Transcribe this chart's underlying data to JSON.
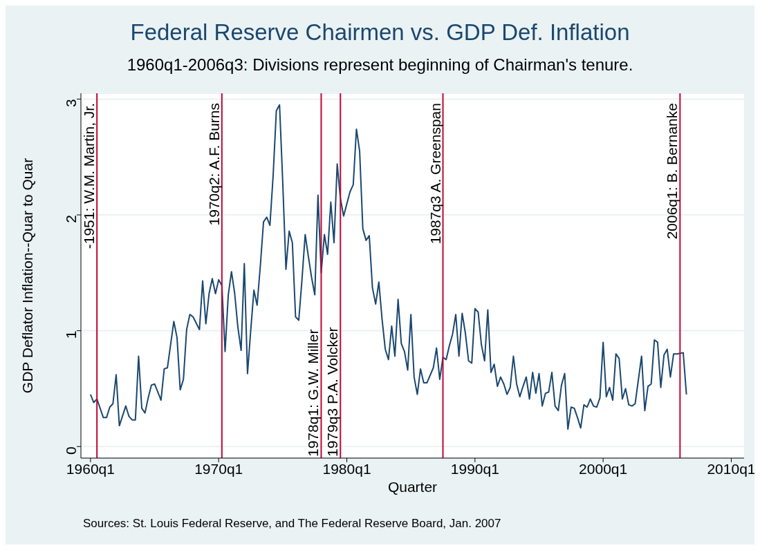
{
  "chart_data": {
    "type": "line",
    "title": "Federal Reserve Chairmen vs. GDP Def. Inflation",
    "subtitle": "1960q1-2006q3: Divisions represent beginning of Chairman's tenure.",
    "xlabel": "Quarter",
    "ylabel": "GDP Deflator Inflation--Quar to Quar",
    "annotations": [
      "Sources: St. Louis Federal Reserve, and The Federal Reserve Board, Jan. 2007"
    ],
    "x": [
      "1960-01",
      "1960-04",
      "1960-07",
      "1961-01",
      "1961-04",
      "1961-07",
      "1961-10",
      "1962-01",
      "1962-04",
      "1962-10",
      "1963-01",
      "1963-04",
      "1963-07",
      "1963-10",
      "1964-01",
      "1964-04",
      "1964-07",
      "1964-10",
      "1965-01",
      "1965-07",
      "1965-10",
      "1966-01",
      "1966-07",
      "1966-10",
      "1967-01",
      "1967-04",
      "1967-07",
      "1967-10",
      "1968-01",
      "1968-07",
      "1968-10",
      "1969-01",
      "1969-04",
      "1969-07",
      "1969-10",
      "1970-01",
      "1970-04",
      "1970-07",
      "1970-10",
      "1971-01",
      "1971-04",
      "1971-07",
      "1971-10",
      "1972-01",
      "1972-04",
      "1972-07",
      "1972-10",
      "1973-01",
      "1973-04",
      "1973-07",
      "1973-10",
      "1974-01",
      "1974-04",
      "1974-07",
      "1974-10",
      "1975-01",
      "1975-04",
      "1975-07",
      "1975-10",
      "1976-01",
      "1976-04",
      "1976-07",
      "1976-10",
      "1977-01",
      "1977-04",
      "1977-07",
      "1977-10",
      "1978-01",
      "1978-04",
      "1978-07",
      "1978-10",
      "1979-01",
      "1979-04",
      "1979-07",
      "1979-10",
      "1980-04",
      "1980-07",
      "1980-10",
      "1981-01",
      "1981-04",
      "1981-07",
      "1981-10",
      "1982-01",
      "1982-04",
      "1982-07",
      "1982-10",
      "1983-01",
      "1983-04",
      "1983-07",
      "1983-10",
      "1984-01",
      "1984-04",
      "1984-07",
      "1984-10",
      "1985-01",
      "1985-04",
      "1985-07",
      "1985-10",
      "1986-01",
      "1986-04",
      "1986-10",
      "1987-01",
      "1987-04",
      "1987-07",
      "1987-10",
      "1988-01",
      "1988-04",
      "1988-07",
      "1988-10",
      "1989-01",
      "1989-04",
      "1989-07",
      "1989-10",
      "1990-01",
      "1990-04",
      "1990-07",
      "1990-10",
      "1991-01",
      "1991-04",
      "1991-07",
      "1991-10",
      "1992-01",
      "1992-04",
      "1992-07",
      "1992-10",
      "1993-01",
      "1993-04",
      "1993-07",
      "1993-10",
      "1994-01",
      "1994-04",
      "1994-07",
      "1994-10",
      "1995-01",
      "1995-04",
      "1995-07",
      "1995-10",
      "1996-01",
      "1996-04",
      "1996-07",
      "1996-10",
      "1997-01",
      "1997-04",
      "1997-07",
      "1997-10",
      "1998-01",
      "1998-04",
      "1998-07",
      "1998-10",
      "1999-01",
      "1999-04",
      "1999-07",
      "1999-10",
      "2000-01",
      "2000-04",
      "2000-07",
      "2000-10",
      "2001-01",
      "2001-04",
      "2001-07",
      "2001-10",
      "2002-01",
      "2002-04",
      "2002-07",
      "2003-01",
      "2003-04",
      "2003-07",
      "2003-10",
      "2004-01",
      "2004-04",
      "2004-07",
      "2004-10",
      "2005-01",
      "2005-04",
      "2005-07",
      "2005-10",
      "2006-04",
      "2006-07"
    ],
    "series": [
      {
        "color": "#1a476f",
        "values": [
          0.45,
          0.38,
          0.41,
          0.25,
          0.25,
          0.34,
          0.37,
          0.62,
          0.18,
          0.35,
          0.26,
          0.23,
          0.23,
          0.78,
          0.33,
          0.29,
          0.42,
          0.53,
          0.54,
          0.4,
          0.67,
          0.68,
          1.08,
          0.94,
          0.49,
          0.58,
          1.01,
          1.14,
          1.12,
          1.01,
          1.43,
          1.06,
          1.32,
          1.45,
          1.32,
          1.44,
          1.39,
          0.82,
          1.31,
          1.51,
          1.32,
          1.03,
          0.83,
          1.58,
          0.63,
          1.0,
          1.35,
          1.22,
          1.56,
          1.94,
          1.98,
          1.91,
          2.34,
          2.9,
          2.95,
          2.28,
          1.53,
          1.86,
          1.76,
          1.12,
          1.09,
          1.44,
          1.83,
          1.64,
          1.46,
          1.31,
          2.17,
          1.5,
          1.83,
          1.66,
          2.11,
          1.76,
          2.44,
          2.14,
          1.99,
          2.2,
          2.26,
          2.74,
          2.55,
          1.88,
          1.78,
          1.82,
          1.37,
          1.23,
          1.42,
          1.1,
          0.84,
          0.75,
          1.04,
          0.78,
          1.27,
          0.89,
          0.82,
          0.66,
          1.14,
          0.6,
          0.45,
          0.67,
          0.55,
          0.55,
          0.68,
          0.85,
          0.58,
          0.77,
          0.75,
          0.87,
          0.97,
          1.14,
          0.78,
          1.15,
          0.98,
          0.74,
          0.72,
          1.19,
          1.16,
          0.88,
          0.74,
          1.18,
          0.64,
          0.71,
          0.52,
          0.6,
          0.54,
          0.45,
          0.51,
          0.78,
          0.54,
          0.43,
          0.52,
          0.6,
          0.41,
          0.64,
          0.46,
          0.63,
          0.35,
          0.46,
          0.47,
          0.64,
          0.35,
          0.31,
          0.53,
          0.63,
          0.15,
          0.34,
          0.33,
          0.25,
          0.16,
          0.36,
          0.34,
          0.41,
          0.35,
          0.34,
          0.42,
          0.9,
          0.43,
          0.51,
          0.4,
          0.8,
          0.76,
          0.41,
          0.5,
          0.36,
          0.35,
          0.37,
          0.78,
          0.31,
          0.52,
          0.54,
          0.92,
          0.9,
          0.51,
          0.79,
          0.84,
          0.6,
          0.8,
          0.8,
          0.81,
          0.45
        ]
      }
    ],
    "xlim": [
      "1959-04",
      "2011-01"
    ],
    "xticks": [
      {
        "value": "1960-01",
        "label": "1960q1"
      },
      {
        "value": "1970-01",
        "label": "1970q1"
      },
      {
        "value": "1980-01",
        "label": "1980q1"
      },
      {
        "value": "1990-01",
        "label": "1990q1"
      },
      {
        "value": "2000-01",
        "label": "2000q1"
      },
      {
        "value": "2010-01",
        "label": "2010q1"
      }
    ],
    "ylim": [
      -0.1,
      3.05
    ],
    "yticks": [
      0,
      1,
      2,
      3
    ],
    "grid": "y",
    "marker": "none",
    "line_style": "solid",
    "ref_lines": [
      {
        "axis": "x",
        "value": "1960-07",
        "label": "-1951: W.M. Martin, Jr.",
        "color": "#c10534"
      },
      {
        "axis": "x",
        "value": "1970-04",
        "label": "1970q2: A.F. Burns",
        "color": "#c10534"
      },
      {
        "axis": "x",
        "value": "1978-01",
        "label": "1978q1: G.W. Miller",
        "color": "#c10534"
      },
      {
        "axis": "x",
        "value": "1979-07",
        "label": "1979q3 P.A. Volcker",
        "color": "#c10534"
      },
      {
        "axis": "x",
        "value": "1987-07",
        "label": "1987q3 A. Greenspan",
        "color": "#c10534"
      },
      {
        "axis": "x",
        "value": "2006-01",
        "label": "2006q1: B. Bernanke",
        "color": "#c10534"
      }
    ]
  }
}
